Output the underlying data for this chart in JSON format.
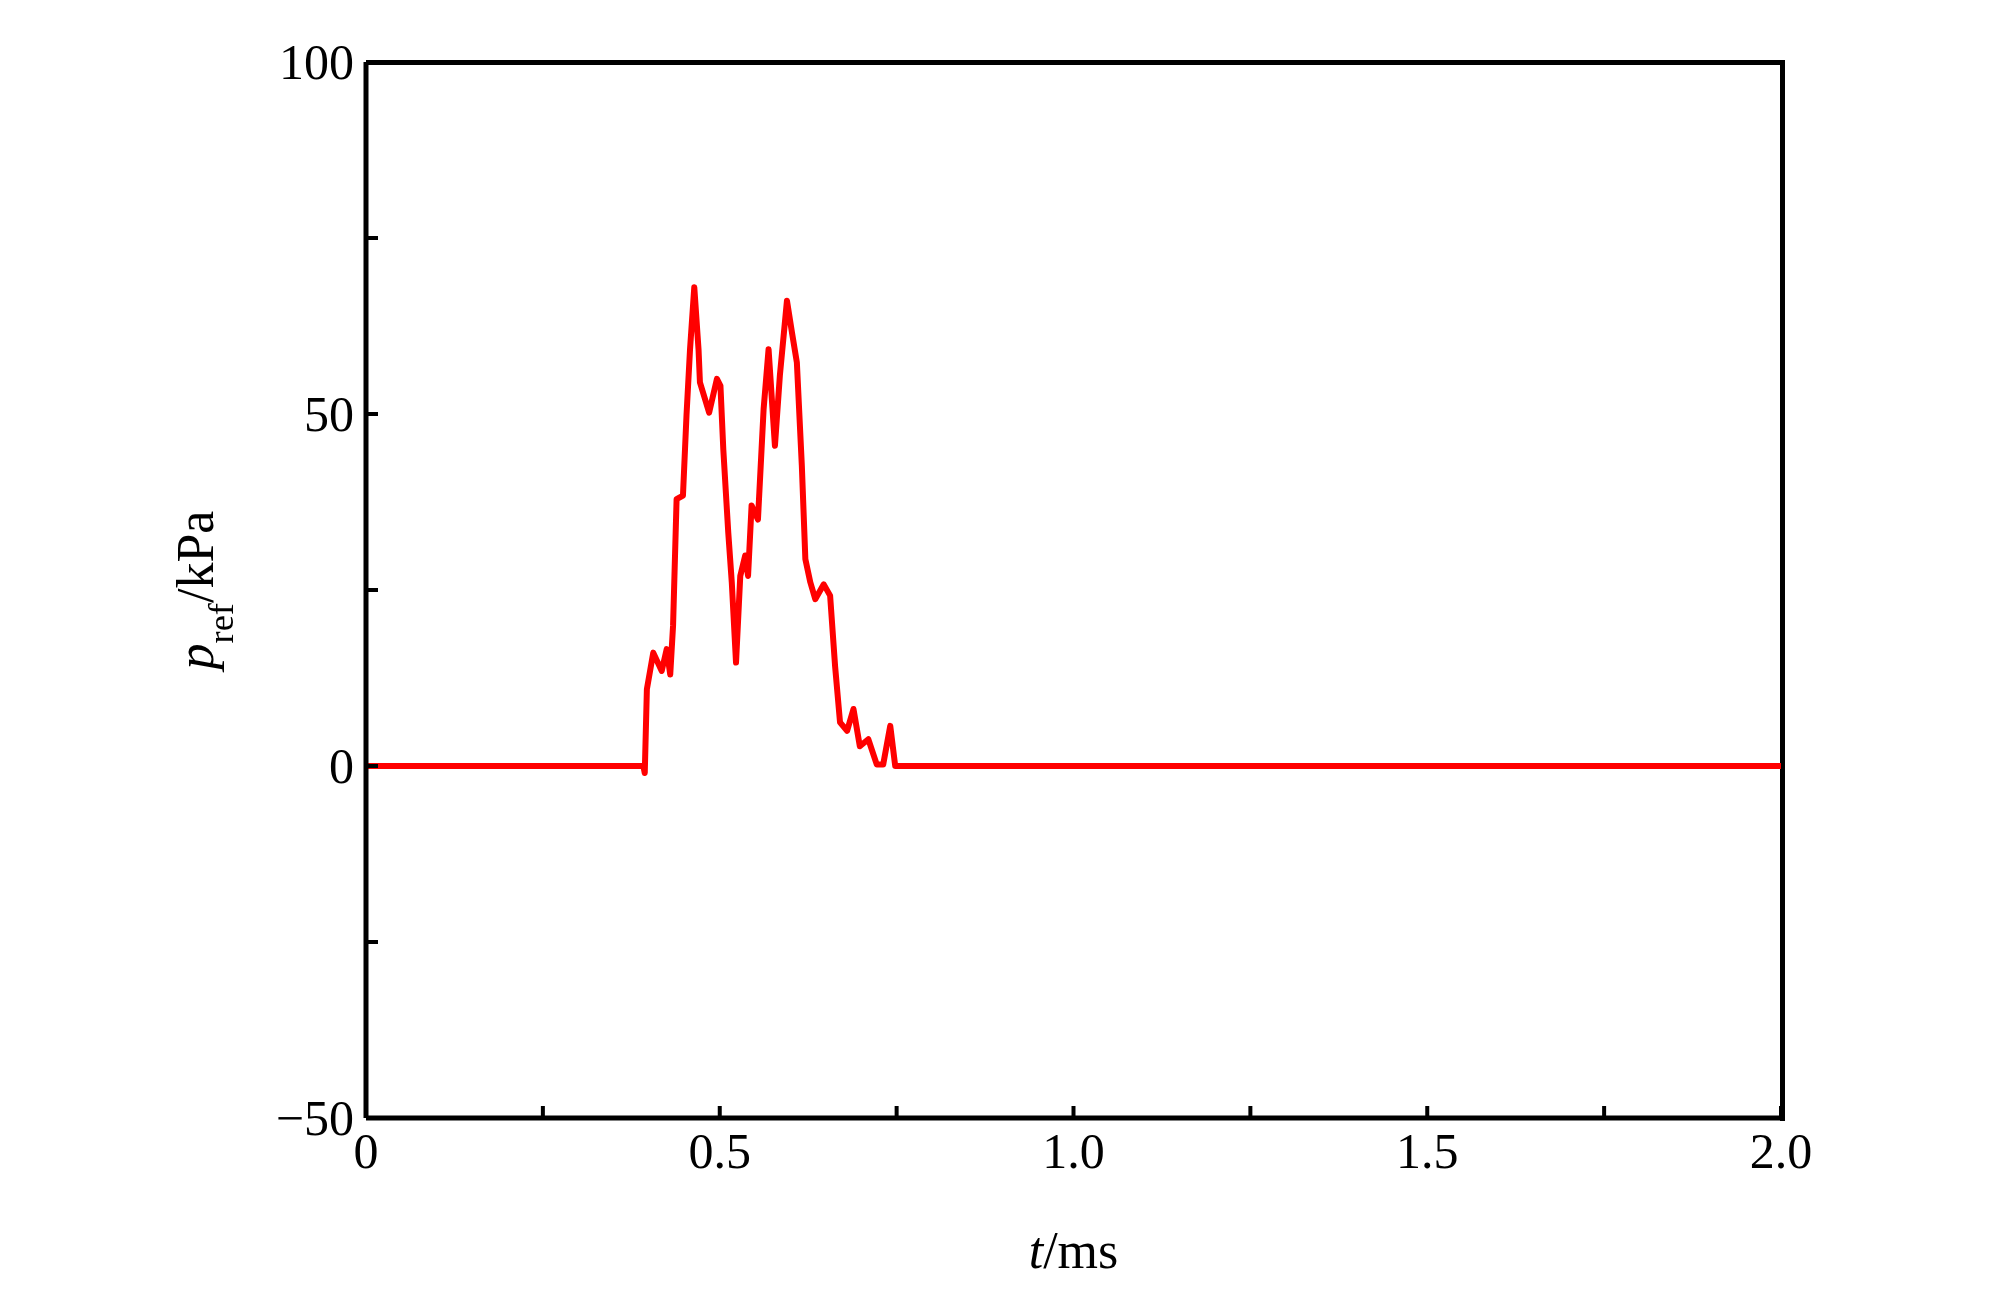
{
  "chart_data": {
    "type": "line",
    "xlabel": "t/ms",
    "ylabel": "p$_{ref}$/kPa",
    "color": "#ff0000",
    "x": [
      0,
      0.392,
      0.394,
      0.397,
      0.406,
      0.418,
      0.425,
      0.43,
      0.434,
      0.439,
      0.448,
      0.453,
      0.458,
      0.464,
      0.47,
      0.472,
      0.485,
      0.496,
      0.501,
      0.505,
      0.512,
      0.517,
      0.523,
      0.529,
      0.536,
      0.54,
      0.545,
      0.554,
      0.562,
      0.569,
      0.578,
      0.585,
      0.595,
      0.602,
      0.609,
      0.616,
      0.621,
      0.628,
      0.635,
      0.647,
      0.656,
      0.663,
      0.67,
      0.68,
      0.689,
      0.698,
      0.71,
      0.722,
      0.731,
      0.741,
      0.748,
      2.0
    ],
    "values": [
      0,
      0,
      -1,
      10.9,
      16.1,
      13.5,
      16.6,
      13,
      19.9,
      37.9,
      38.4,
      49.8,
      59.2,
      68,
      59.2,
      54.5,
      50.2,
      55,
      54,
      45,
      33.2,
      26.1,
      14.7,
      27,
      29.9,
      27,
      37,
      35,
      50.7,
      59.2,
      45.5,
      55.5,
      66.1,
      61.6,
      57.3,
      42.7,
      29.4,
      26.1,
      23.7,
      25.8,
      24.2,
      14.2,
      6.2,
      5,
      8.1,
      2.8,
      3.8,
      0.2,
      0.2,
      5.7,
      0,
      0
    ],
    "xlim": [
      0,
      2.0
    ],
    "ylim": [
      -50,
      100
    ],
    "xticks": [
      0,
      {
        "value": 0.25,
        "label": null
      },
      0.5,
      {
        "value": 0.75,
        "label": null
      },
      {
        "value": 1.0,
        "label": "1.0"
      },
      {
        "value": 1.25,
        "label": null
      },
      1.5,
      {
        "value": 1.75,
        "label": null
      },
      {
        "value": 2.0,
        "label": "2.0"
      }
    ],
    "yticks": [
      {
        "value": -50,
        "label": "−50"
      },
      {
        "value": -25,
        "label": null
      },
      0,
      {
        "value": 25,
        "label": null
      },
      50,
      {
        "value": 75,
        "label": null
      },
      100
    ],
    "line_style": "solid",
    "marker": "none"
  }
}
